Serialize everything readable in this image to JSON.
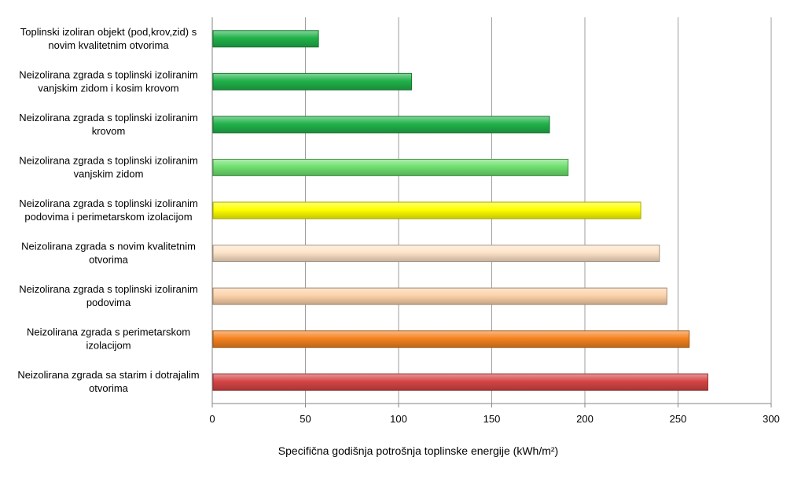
{
  "chart_data": {
    "type": "bar",
    "orientation": "horizontal",
    "categories": [
      [
        "Toplinski izoliran objekt (pod,krov,zid) s",
        "novim kvalitetnim otvorima"
      ],
      [
        "Neizolirana zgrada s toplinski izoliranim",
        "vanjskim zidom i kosim krovom"
      ],
      [
        "Neizolirana zgrada s toplinski izoliranim",
        "krovom"
      ],
      [
        "Neizolirana zgrada s toplinski izoliranim",
        "vanjskim zidom"
      ],
      [
        "Neizolirana zgrada s toplinski izoliranim",
        "podovima i perimetarskom izolacijom"
      ],
      [
        "Neizolirana zgrada s novim kvalitetnim",
        "otvorima"
      ],
      [
        "Neizolirana zgrada s toplinski izoliranim",
        "podovima"
      ],
      [
        "Neizolirana zgrada s perimetarskom",
        "izolacijom"
      ],
      [
        "Neizolirana zgrada sa starim i dotrajalim",
        "otvorima"
      ]
    ],
    "values": [
      57,
      107,
      181,
      191,
      230,
      240,
      244,
      256,
      266
    ],
    "colors": [
      "#21b24a",
      "#21b24a",
      "#21b24a",
      "#6fe06f",
      "#ffff00",
      "#fde3c8",
      "#fcd2aa",
      "#f58220",
      "#d64545"
    ],
    "xlim": [
      0,
      300
    ],
    "xticks": [
      0,
      50,
      100,
      150,
      200,
      250,
      300
    ],
    "xlabel": "Specifična godišnja potrošnja toplinske energije  (kWh/m²)",
    "title": "",
    "grid": true,
    "legend": "none"
  }
}
